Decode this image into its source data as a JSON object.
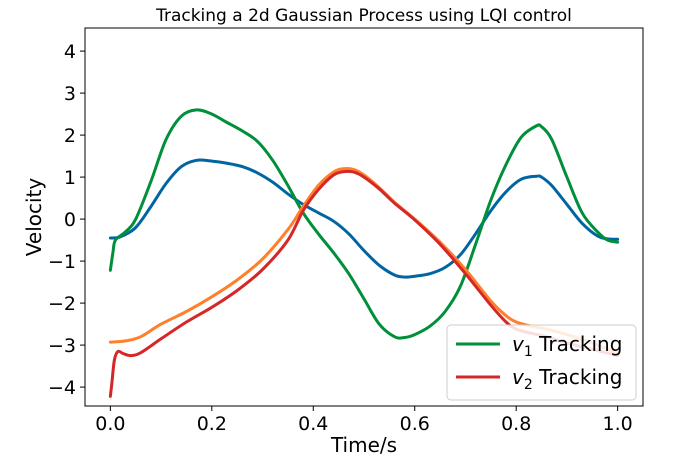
{
  "chart_data": {
    "type": "line",
    "title": "Tracking a 2d Gaussian Process using LQI control",
    "xlabel": "Time/s",
    "ylabel": "Velocity",
    "xlim": [
      -0.05,
      1.05
    ],
    "ylim": [
      -4.45,
      4.55
    ],
    "xticks": [
      0.0,
      0.2,
      0.4,
      0.6,
      0.8,
      1.0
    ],
    "xtick_labels": [
      "0.0",
      "0.2",
      "0.4",
      "0.6",
      "0.8",
      "1.0"
    ],
    "yticks": [
      -4,
      -3,
      -2,
      -1,
      0,
      1,
      2,
      3,
      4
    ],
    "ytick_labels": [
      "−4",
      "−3",
      "−2",
      "−1",
      "0",
      "1",
      "2",
      "3",
      "4"
    ],
    "grid": false,
    "legend": {
      "position": "lower-right",
      "entries": [
        {
          "base": "v",
          "sub": "1",
          "suffix": " Tracking",
          "color": "#008f3a"
        },
        {
          "base": "v",
          "sub": "2",
          "suffix": " Tracking",
          "color": "#d62728"
        }
      ]
    },
    "series": [
      {
        "color": "#0066a1",
        "x": [
          0.0,
          0.02,
          0.05,
          0.08,
          0.11,
          0.14,
          0.17,
          0.2,
          0.23,
          0.26,
          0.29,
          0.32,
          0.35,
          0.38,
          0.41,
          0.44,
          0.47,
          0.5,
          0.53,
          0.56,
          0.58,
          0.6,
          0.63,
          0.66,
          0.69,
          0.72,
          0.75,
          0.78,
          0.81,
          0.84,
          0.85,
          0.87,
          0.9,
          0.93,
          0.96,
          0.98,
          1.0
        ],
        "y": [
          -0.45,
          -0.42,
          -0.2,
          0.3,
          0.85,
          1.25,
          1.4,
          1.38,
          1.33,
          1.25,
          1.1,
          0.88,
          0.6,
          0.35,
          0.15,
          -0.05,
          -0.35,
          -0.75,
          -1.1,
          -1.33,
          -1.38,
          -1.36,
          -1.3,
          -1.15,
          -0.85,
          -0.35,
          0.2,
          0.65,
          0.95,
          1.02,
          1.0,
          0.8,
          0.35,
          -0.1,
          -0.4,
          -0.47,
          -0.48
        ]
      },
      {
        "color": "#008f3a",
        "x": [
          0.0,
          0.005,
          0.01,
          0.03,
          0.05,
          0.08,
          0.11,
          0.14,
          0.17,
          0.2,
          0.23,
          0.26,
          0.29,
          0.32,
          0.35,
          0.38,
          0.41,
          0.44,
          0.47,
          0.5,
          0.53,
          0.56,
          0.58,
          0.6,
          0.63,
          0.66,
          0.69,
          0.72,
          0.75,
          0.78,
          0.81,
          0.84,
          0.85,
          0.87,
          0.9,
          0.93,
          0.96,
          0.98,
          1.0
        ],
        "y": [
          -1.22,
          -0.8,
          -0.5,
          -0.3,
          0.0,
          0.9,
          1.9,
          2.45,
          2.6,
          2.5,
          2.3,
          2.1,
          1.85,
          1.4,
          0.8,
          0.15,
          -0.35,
          -0.8,
          -1.3,
          -1.9,
          -2.5,
          -2.8,
          -2.82,
          -2.75,
          -2.55,
          -2.2,
          -1.6,
          -0.6,
          0.45,
          1.3,
          1.95,
          2.22,
          2.2,
          1.9,
          1.0,
          0.15,
          -0.3,
          -0.5,
          -0.55
        ]
      },
      {
        "color": "#ff7f2a",
        "x": [
          0.0,
          0.03,
          0.06,
          0.1,
          0.15,
          0.2,
          0.25,
          0.3,
          0.35,
          0.38,
          0.41,
          0.44,
          0.46,
          0.48,
          0.5,
          0.53,
          0.56,
          0.6,
          0.65,
          0.7,
          0.75,
          0.78,
          0.8,
          0.83,
          0.86,
          0.9,
          0.95,
          1.0
        ],
        "y": [
          -2.93,
          -2.9,
          -2.8,
          -2.5,
          -2.2,
          -1.85,
          -1.45,
          -0.95,
          -0.25,
          0.3,
          0.8,
          1.12,
          1.2,
          1.18,
          1.05,
          0.75,
          0.4,
          0.0,
          -0.55,
          -1.2,
          -1.95,
          -2.3,
          -2.45,
          -2.55,
          -2.62,
          -2.75,
          -2.95,
          -3.2
        ]
      },
      {
        "color": "#d62728",
        "x": [
          0.0,
          0.003,
          0.008,
          0.015,
          0.025,
          0.04,
          0.06,
          0.1,
          0.15,
          0.2,
          0.25,
          0.3,
          0.35,
          0.38,
          0.41,
          0.44,
          0.46,
          0.48,
          0.5,
          0.53,
          0.56,
          0.6,
          0.65,
          0.7,
          0.75,
          0.78,
          0.8,
          0.83,
          0.86,
          0.9,
          0.95,
          1.0
        ],
        "y": [
          -4.22,
          -3.9,
          -3.35,
          -3.15,
          -3.2,
          -3.25,
          -3.18,
          -2.85,
          -2.45,
          -2.1,
          -1.7,
          -1.2,
          -0.5,
          0.2,
          0.7,
          1.05,
          1.13,
          1.12,
          1.0,
          0.72,
          0.38,
          -0.02,
          -0.6,
          -1.3,
          -2.05,
          -2.45,
          -2.62,
          -2.72,
          -2.8,
          -2.95,
          -3.1,
          -3.25
        ]
      }
    ]
  }
}
